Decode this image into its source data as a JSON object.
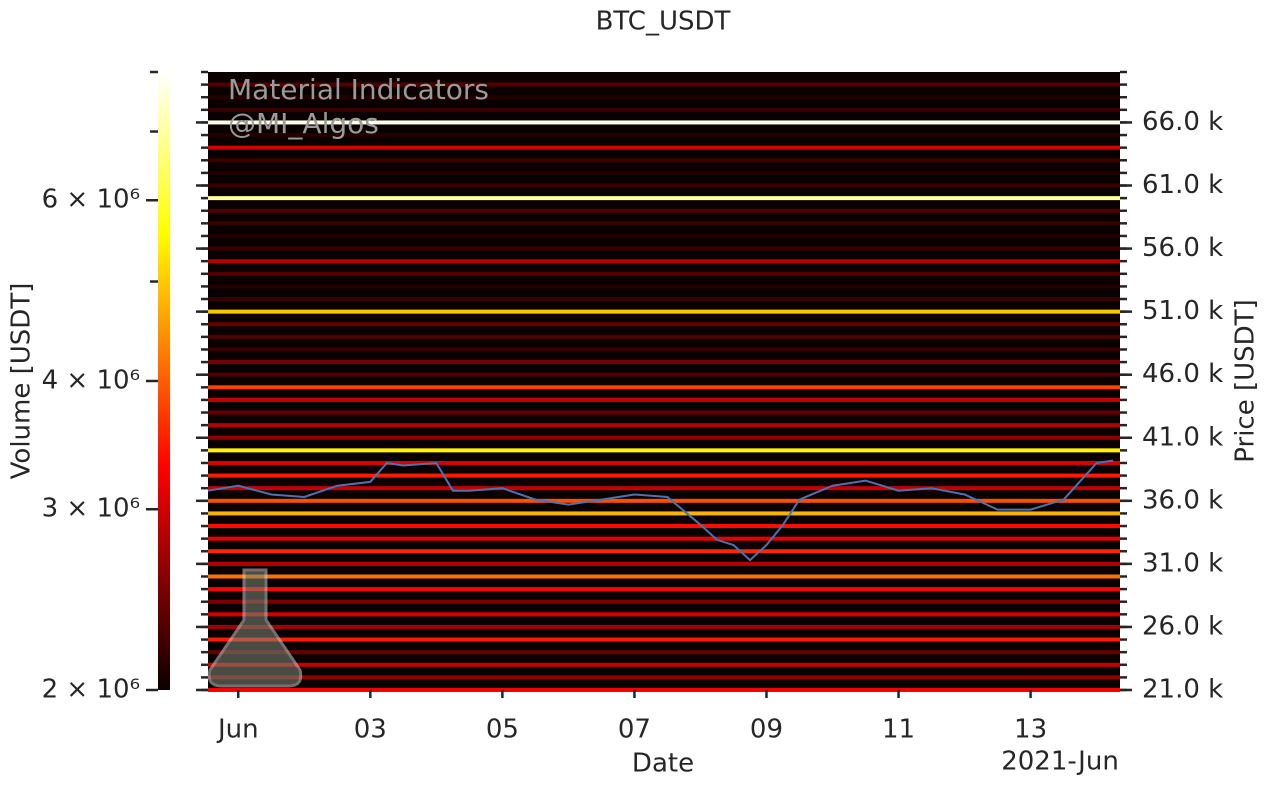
{
  "chart_data": {
    "type": "heatmap",
    "title": "BTC_USDT",
    "xlabel": "Date",
    "ylabel": "Volume [USDT]",
    "y2label": "Price [USDT]",
    "watermark": [
      "Material Indicators",
      "@MI_Algos"
    ],
    "xlim": [
      "2021-05-31 13:00",
      "2021-06-14 08:30"
    ],
    "xticks": [
      {
        "value": "2021-06-01 00:00",
        "label": "Jun"
      },
      {
        "value": "2021-06-03 00:00",
        "label": "03"
      },
      {
        "value": "2021-06-05 00:00",
        "label": "05"
      },
      {
        "value": "2021-06-07 00:00",
        "label": "07"
      },
      {
        "value": "2021-06-09 00:00",
        "label": "09"
      },
      {
        "value": "2021-06-11 00:00",
        "label": "11"
      },
      {
        "value": "2021-06-13 00:00",
        "label": "13"
      }
    ],
    "x_offset_label": "2021-Jun",
    "clim": [
      2000000,
      8000000
    ],
    "clog": true,
    "cticks": [
      {
        "value": 2000000,
        "label": "2 × 10⁶"
      },
      {
        "value": 3000000,
        "label": "3 × 10⁶"
      },
      {
        "value": 4000000,
        "label": "4 × 10⁶"
      },
      {
        "value": 6000000,
        "label": "6 × 10⁶"
      }
    ],
    "cminor_ticks": [
      5000000,
      7000000,
      8000000
    ],
    "y2lim": [
      21000,
      70000
    ],
    "y2ticks": [
      {
        "value": 21000,
        "label": "21.0 k"
      },
      {
        "value": 26000,
        "label": "26.0 k"
      },
      {
        "value": 31000,
        "label": "31.0 k"
      },
      {
        "value": 36000,
        "label": "36.0 k"
      },
      {
        "value": 41000,
        "label": "41.0 k"
      },
      {
        "value": 46000,
        "label": "46.0 k"
      },
      {
        "value": 51000,
        "label": "51.0 k"
      },
      {
        "value": 56000,
        "label": "56.0 k"
      },
      {
        "value": 61000,
        "label": "61.0 k"
      },
      {
        "value": 66000,
        "label": "66.0 k"
      }
    ],
    "y2minor_step": 1000,
    "colormap": "hot",
    "heatmap": {
      "prices": [
        21000,
        22000,
        23000,
        24000,
        25000,
        26000,
        27000,
        28000,
        29000,
        30000,
        31000,
        32000,
        33000,
        34000,
        35000,
        36000,
        37000,
        38000,
        39000,
        40000,
        41000,
        42000,
        43000,
        44000,
        45000,
        46000,
        47000,
        48000,
        49000,
        50000,
        51000,
        52000,
        53000,
        54000,
        55000,
        56000,
        57000,
        58000,
        59000,
        60000,
        61000,
        62000,
        63000,
        64000,
        65000,
        66000,
        67000,
        68000,
        69000
      ],
      "volumes": [
        3200000,
        2600000,
        2900000,
        2400000,
        3500000,
        2700000,
        3000000,
        2500000,
        3300000,
        4200000,
        2800000,
        3600000,
        3100000,
        3400000,
        4800000,
        3900000,
        2900000,
        3500000,
        3000000,
        5500000,
        2600000,
        2800000,
        2400000,
        2900000,
        3800000,
        2300000,
        2500000,
        2200000,
        2300000,
        2400000,
        5000000,
        2200000,
        2100000,
        2300000,
        2800000,
        2200000,
        2100000,
        2200000,
        2300000,
        7000000,
        2200000,
        2100000,
        2200000,
        3000000,
        2100000,
        7800000,
        2200000,
        2100000,
        2300000
      ]
    },
    "price": {
      "color": "#4c72b0",
      "x": [
        "2021-05-31 13:00",
        "2021-06-01 00:00",
        "2021-06-01 12:00",
        "2021-06-02 00:00",
        "2021-06-02 12:00",
        "2021-06-03 00:00",
        "2021-06-03 06:00",
        "2021-06-03 12:00",
        "2021-06-04 00:00",
        "2021-06-04 06:00",
        "2021-06-04 12:00",
        "2021-06-05 00:00",
        "2021-06-05 12:00",
        "2021-06-06 00:00",
        "2021-06-06 12:00",
        "2021-06-07 00:00",
        "2021-06-07 12:00",
        "2021-06-08 00:00",
        "2021-06-08 06:00",
        "2021-06-08 12:00",
        "2021-06-08 18:00",
        "2021-06-09 00:00",
        "2021-06-09 06:00",
        "2021-06-09 12:00",
        "2021-06-10 00:00",
        "2021-06-10 12:00",
        "2021-06-11 00:00",
        "2021-06-11 12:00",
        "2021-06-12 00:00",
        "2021-06-12 12:00",
        "2021-06-13 00:00",
        "2021-06-13 12:00",
        "2021-06-14 00:00",
        "2021-06-14 06:00"
      ],
      "values": [
        36800,
        37200,
        36500,
        36300,
        37200,
        37500,
        39000,
        38800,
        39000,
        36800,
        36800,
        37000,
        36100,
        35700,
        36100,
        36500,
        36300,
        34100,
        32900,
        32500,
        31300,
        32500,
        34100,
        36100,
        37200,
        37600,
        36800,
        37000,
        36500,
        35300,
        35300,
        36100,
        39000,
        39200
      ]
    }
  }
}
